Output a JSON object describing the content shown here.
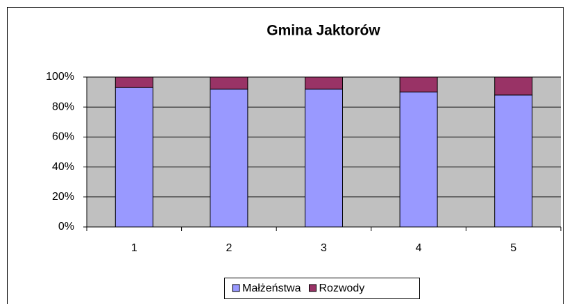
{
  "chart_data": {
    "type": "stacked_bar",
    "title": "Gmina Jaktorów",
    "categories": [
      "1",
      "2",
      "3",
      "4",
      "5"
    ],
    "series": [
      {
        "name": "Małżeństwa",
        "color": "#9999ff",
        "values": [
          93,
          92,
          92,
          90,
          88
        ]
      },
      {
        "name": "Rozwody",
        "color": "#993366",
        "values": [
          7,
          8,
          8,
          10,
          12
        ]
      }
    ],
    "ylim": [
      0,
      100
    ],
    "yticks": [
      {
        "value": 0,
        "label": "0%"
      },
      {
        "value": 20,
        "label": "20%"
      },
      {
        "value": 40,
        "label": "40%"
      },
      {
        "value": 60,
        "label": "60%"
      },
      {
        "value": 80,
        "label": "80%"
      },
      {
        "value": 100,
        "label": "100%"
      }
    ],
    "grid": true,
    "legend": "bottom"
  }
}
